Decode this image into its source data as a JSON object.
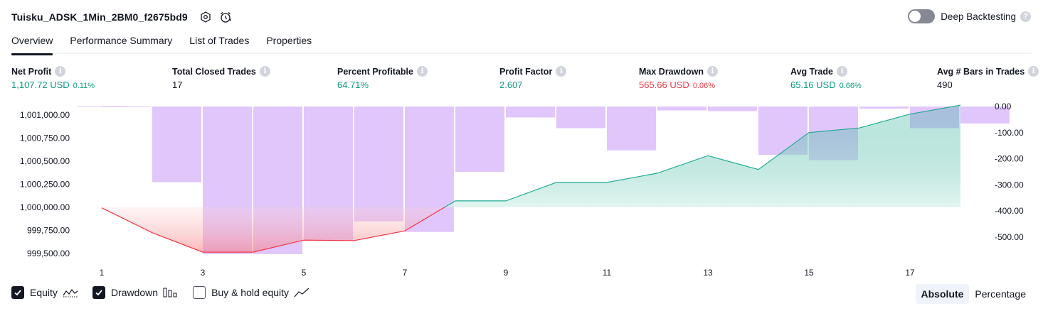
{
  "header": {
    "title": "Tuisku_ADSK_1Min_2BM0_f2675bd9",
    "deep_backtesting_label": "Deep Backtesting"
  },
  "tabs": [
    {
      "label": "Overview",
      "active": true
    },
    {
      "label": "Performance Summary",
      "active": false
    },
    {
      "label": "List of Trades",
      "active": false
    },
    {
      "label": "Properties",
      "active": false
    }
  ],
  "metrics": {
    "net_profit": {
      "label": "Net Profit",
      "value": "1,107.72 USD",
      "pct": "0.11%"
    },
    "total_closed_trades": {
      "label": "Total Closed Trades",
      "value": "17"
    },
    "percent_profitable": {
      "label": "Percent Profitable",
      "value": "64.71%"
    },
    "profit_factor": {
      "label": "Profit Factor",
      "value": "2.607"
    },
    "max_drawdown": {
      "label": "Max Drawdown",
      "value": "565.66 USD",
      "pct": "0.06%"
    },
    "avg_trade": {
      "label": "Avg Trade",
      "value": "65.16 USD",
      "pct": "0.66%"
    },
    "avg_bars": {
      "label": "Avg # Bars in Trades",
      "value": "490"
    }
  },
  "chart_data": {
    "type": "line",
    "x": [
      1,
      2,
      3,
      4,
      5,
      6,
      7,
      8,
      9,
      10,
      11,
      12,
      13,
      14,
      15,
      16,
      17,
      18
    ],
    "x_ticks": [
      "1",
      "3",
      "5",
      "7",
      "9",
      "11",
      "13",
      "15",
      "17"
    ],
    "y_left_ticks": [
      "1,001,000.00",
      "1,000,750.00",
      "1,000,500.00",
      "1,000,250.00",
      "1,000,000.00",
      "999,750.00",
      "999,500.00"
    ],
    "y_right_ticks": [
      "0.00",
      "-100.00",
      "-200.00",
      "-300.00",
      "-400.00",
      "-500.00"
    ],
    "y_left_range": [
      999500,
      1001000
    ],
    "y_right_range": [
      -565,
      0
    ],
    "series": [
      {
        "name": "Equity",
        "axis": "left",
        "values": [
          999995,
          999725,
          999515,
          999515,
          999645,
          999640,
          999745,
          1000070,
          1000070,
          1000270,
          1000270,
          1000370,
          1000560,
          1000410,
          1000810,
          1000860,
          1001010,
          1001107
        ]
      },
      {
        "name": "Drawdown",
        "axis": "right",
        "values": [
          -2,
          -290,
          -565,
          -565,
          -515,
          -440,
          -480,
          -250,
          -42,
          -83,
          -168,
          -15,
          -18,
          -185,
          -205,
          -8,
          -83,
          -65
        ]
      }
    ],
    "colors": {
      "drawdown_bar": "#e1c6fb",
      "equity_positive_line": "#22ab94",
      "equity_negative_line": "#f23645",
      "equity_positive_fill": "#d6f1e9",
      "equity_negative_fill": "#fcd2d3"
    }
  },
  "legend": {
    "equity": {
      "label": "Equity",
      "checked": true
    },
    "drawdown": {
      "label": "Drawdown",
      "checked": true
    },
    "buy_hold": {
      "label": "Buy & hold equity",
      "checked": false
    }
  },
  "modes": {
    "absolute": "Absolute",
    "percentage": "Percentage"
  }
}
